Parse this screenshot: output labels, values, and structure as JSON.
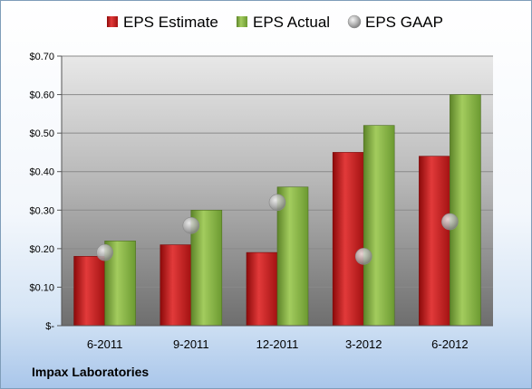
{
  "chart_data": {
    "type": "bar",
    "categories": [
      "6-2011",
      "9-2011",
      "12-2011",
      "3-2012",
      "6-2012"
    ],
    "series": [
      {
        "name": "EPS Estimate",
        "type": "bar",
        "color": "#cc1f1f",
        "values": [
          0.18,
          0.21,
          0.19,
          0.45,
          0.44
        ]
      },
      {
        "name": "EPS Actual",
        "type": "bar",
        "color": "#8db648",
        "values": [
          0.22,
          0.3,
          0.36,
          0.52,
          0.6
        ]
      },
      {
        "name": "EPS GAAP",
        "type": "marker",
        "color": "#a8a8a8",
        "values": [
          0.19,
          0.26,
          0.32,
          0.18,
          0.27
        ]
      }
    ],
    "ylim": [
      0,
      0.7
    ],
    "yticks": [
      0,
      0.1,
      0.2,
      0.3,
      0.4,
      0.5,
      0.6,
      0.7
    ],
    "ytick_labels": [
      "$-",
      "$0.10",
      "$0.20",
      "$0.30",
      "$0.40",
      "$0.50",
      "$0.60",
      "$0.70"
    ],
    "grid": true,
    "legend_position": "top"
  },
  "footer": {
    "company": "Impax Laboratories"
  }
}
